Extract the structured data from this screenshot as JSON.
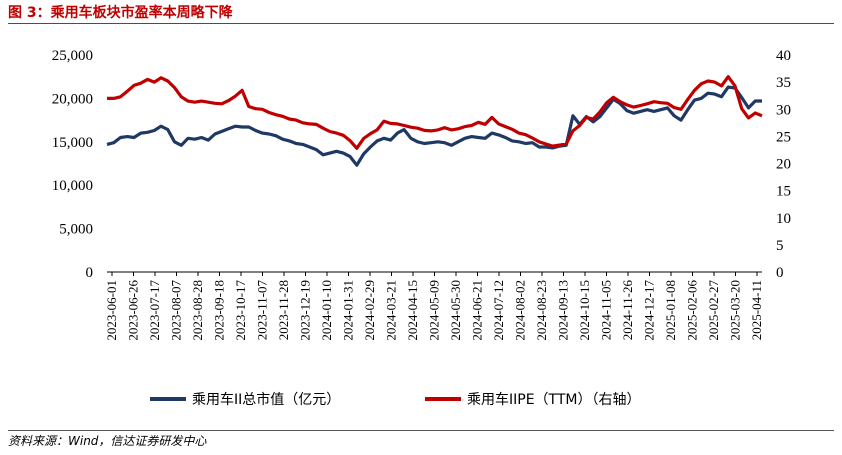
{
  "title": "图 3：乘用车板块市盈率本周略下降",
  "source": "资料来源：Wind，信达证券研发中心",
  "chart_data": {
    "type": "line",
    "x_ticks": [
      "2023-06-01",
      "2023-06-26",
      "2023-07-17",
      "2023-08-07",
      "2023-08-28",
      "2023-09-18",
      "2023-10-17",
      "2023-11-07",
      "2023-11-28",
      "2023-12-19",
      "2024-01-10",
      "2024-01-31",
      "2024-02-29",
      "2024-03-21",
      "2024-04-15",
      "2024-05-09",
      "2024-05-30",
      "2024-06-21",
      "2024-07-12",
      "2024-08-02",
      "2024-08-23",
      "2024-09-13",
      "2024-10-15",
      "2024-11-05",
      "2024-11-26",
      "2024-12-17",
      "2025-01-08",
      "2025-02-06",
      "2025-02-27",
      "2025-03-20",
      "2025-04-11"
    ],
    "y_left": {
      "ticks": [
        "25,000",
        "20,000",
        "15,000",
        "10,000",
        "5,000",
        "0"
      ],
      "ylim": [
        0,
        25000
      ]
    },
    "y_right": {
      "ticks": [
        "40",
        "35",
        "30",
        "25",
        "20",
        "15",
        "10",
        "5",
        "0"
      ],
      "ylim": [
        0,
        40
      ]
    },
    "series": [
      {
        "name": "乘用车II总市值（亿元）",
        "axis": "left",
        "color": "#1f3864",
        "values": [
          14700,
          14900,
          15500,
          15600,
          15500,
          16000,
          16100,
          16300,
          16800,
          16400,
          15000,
          14600,
          15400,
          15300,
          15500,
          15200,
          15900,
          16200,
          16500,
          16800,
          16700,
          16700,
          16300,
          16000,
          15900,
          15700,
          15300,
          15100,
          14800,
          14700,
          14400,
          14100,
          13500,
          13700,
          13900,
          13700,
          13300,
          12300,
          13600,
          14400,
          15100,
          15400,
          15200,
          16000,
          16400,
          15400,
          15000,
          14800,
          14900,
          15000,
          14900,
          14600,
          15000,
          15400,
          15600,
          15500,
          15400,
          16000,
          15800,
          15500,
          15100,
          15000,
          14800,
          14900,
          14400,
          14400,
          14300,
          14500,
          14600,
          18000,
          17000,
          17900,
          17300,
          17900,
          18900,
          19900,
          19400,
          18600,
          18300,
          18500,
          18700,
          18500,
          18700,
          18900,
          18000,
          17500,
          18700,
          19800,
          20000,
          20600,
          20500,
          20200,
          21300,
          21200,
          20100,
          18900,
          19700,
          19700
        ]
      },
      {
        "name": "乘用车IIPE（TTM）（右轴）",
        "axis": "right",
        "color": "#c00000",
        "values": [
          32.0,
          32.0,
          32.3,
          33.3,
          34.4,
          34.8,
          35.5,
          35.0,
          35.8,
          35.2,
          34.0,
          32.3,
          31.5,
          31.3,
          31.5,
          31.3,
          31.1,
          31.0,
          31.6,
          32.4,
          33.5,
          30.5,
          30.1,
          30.0,
          29.4,
          29.0,
          28.7,
          28.2,
          28.0,
          27.5,
          27.3,
          27.2,
          26.5,
          25.9,
          25.6,
          25.2,
          24.2,
          22.8,
          24.6,
          25.5,
          26.2,
          27.8,
          27.4,
          27.3,
          27.0,
          26.7,
          26.5,
          26.1,
          26.0,
          26.2,
          26.6,
          26.2,
          26.4,
          26.8,
          27.0,
          27.6,
          27.2,
          28.5,
          27.3,
          26.8,
          26.3,
          25.6,
          25.3,
          24.7,
          24.0,
          23.6,
          23.2,
          23.4,
          23.6,
          26.0,
          27.0,
          28.5,
          28.2,
          29.5,
          31.2,
          32.2,
          31.4,
          30.8,
          30.4,
          30.7,
          31.0,
          31.4,
          31.2,
          31.1,
          30.3,
          30.0,
          31.8,
          33.5,
          34.7,
          35.2,
          35.0,
          34.3,
          36.0,
          34.3,
          30.1,
          28.4,
          29.3,
          28.8
        ]
      }
    ],
    "grid": false,
    "legend": "bottom"
  }
}
